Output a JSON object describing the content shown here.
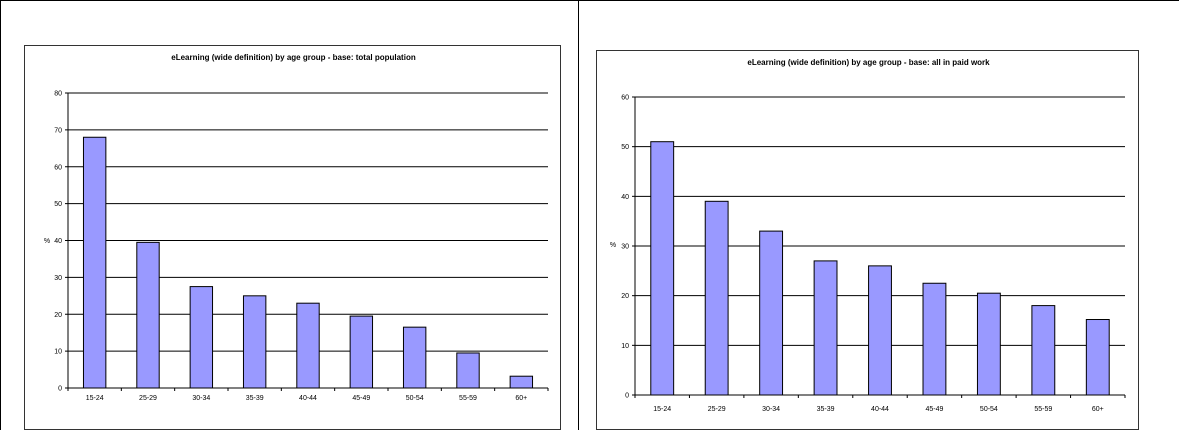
{
  "chart_data": [
    {
      "type": "bar",
      "title": "eLearning (wide definition) by age group - base: total population",
      "ylabel": "%",
      "xlabel": "",
      "categories": [
        "15-24",
        "25-29",
        "30-34",
        "35-39",
        "40-44",
        "45-49",
        "50-54",
        "55-59",
        "60+"
      ],
      "values": [
        68,
        39.5,
        27.5,
        25,
        23,
        19.5,
        16.5,
        9.5,
        3.2
      ],
      "ylim": [
        0,
        80
      ],
      "yticks": [
        "0",
        "10",
        "20",
        "30",
        "40",
        "50",
        "60",
        "70",
        "80"
      ],
      "grid": true,
      "bar_color": "#9999ff",
      "legend": "none"
    },
    {
      "type": "bar",
      "title": "eLearning (wide definition) by age group - base: all in paid work",
      "ylabel": "%",
      "xlabel": "",
      "categories": [
        "15-24",
        "25-29",
        "30-34",
        "35-39",
        "40-44",
        "45-49",
        "50-54",
        "55-59",
        "60+"
      ],
      "values": [
        51,
        39,
        33,
        27,
        26,
        22.5,
        20.5,
        18,
        15.2
      ],
      "ylim": [
        0,
        60
      ],
      "yticks": [
        "0",
        "10",
        "20",
        "30",
        "40",
        "50",
        "60"
      ],
      "grid": true,
      "bar_color": "#9999ff",
      "legend": "none"
    }
  ]
}
